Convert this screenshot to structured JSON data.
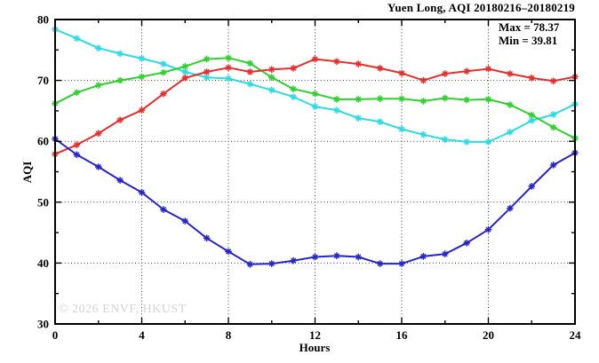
{
  "watermark": "© 2026 ENVF, HKUST",
  "chart_data": {
    "type": "line",
    "title": "Yuen Long, AQI 20180216–20180219",
    "xlabel": "Hours",
    "ylabel": "AQI",
    "xlim": [
      0,
      24
    ],
    "ylim": [
      30,
      80
    ],
    "x_major_ticks": [
      0,
      4,
      8,
      12,
      16,
      20,
      24
    ],
    "x_minor_ticks": [
      2,
      6,
      10,
      14,
      18,
      22
    ],
    "y_major_ticks": [
      30,
      40,
      50,
      60,
      70,
      80
    ],
    "y_minor_ticks": [
      35,
      45,
      55,
      65,
      75
    ],
    "grid_x": [
      4,
      8,
      12,
      16,
      20
    ],
    "grid_y": [
      40,
      50,
      60,
      70
    ],
    "grid": true,
    "legend_position": "none",
    "marker": "asterisk",
    "x": [
      0,
      1,
      2,
      3,
      4,
      5,
      6,
      7,
      8,
      9,
      10,
      11,
      12,
      13,
      14,
      15,
      16,
      17,
      18,
      19,
      20,
      21,
      22,
      23,
      24
    ],
    "series": [
      {
        "name": "cyan-line",
        "color": "#2bdce2",
        "values": [
          78.4,
          76.9,
          75.3,
          74.4,
          73.6,
          72.7,
          71.4,
          70.5,
          70.3,
          69.4,
          68.4,
          67.3,
          65.7,
          65.1,
          63.8,
          63.2,
          62.0,
          61.1,
          60.3,
          59.9,
          59.9,
          61.5,
          63.4,
          64.4,
          66.1
        ]
      },
      {
        "name": "green-line",
        "color": "#2fd02f",
        "values": [
          66.2,
          68.0,
          69.2,
          70.0,
          70.6,
          71.3,
          72.3,
          73.5,
          73.7,
          72.8,
          70.5,
          68.6,
          67.8,
          66.9,
          66.9,
          67.0,
          67.0,
          66.6,
          67.1,
          66.8,
          66.9,
          66.0,
          64.3,
          62.3,
          60.5
        ]
      },
      {
        "name": "red-line",
        "color": "#e62e2e",
        "values": [
          57.9,
          59.4,
          61.3,
          63.5,
          65.1,
          67.8,
          70.4,
          71.4,
          72.1,
          71.4,
          71.8,
          72.0,
          73.5,
          73.1,
          72.7,
          72.0,
          71.2,
          70.0,
          71.1,
          71.5,
          71.9,
          71.1,
          70.4,
          69.9,
          70.6
        ]
      },
      {
        "name": "blue-line",
        "color": "#2626c8",
        "values": [
          60.4,
          57.8,
          55.8,
          53.6,
          51.6,
          48.8,
          46.9,
          44.1,
          41.9,
          39.8,
          39.9,
          40.4,
          41.0,
          41.2,
          41.0,
          39.9,
          39.9,
          41.1,
          41.5,
          43.3,
          45.5,
          49.0,
          52.6,
          56.1,
          58.1
        ]
      }
    ],
    "annotations": {
      "max_label": "Max = 78.37",
      "min_label": "Min = 39.81"
    }
  }
}
